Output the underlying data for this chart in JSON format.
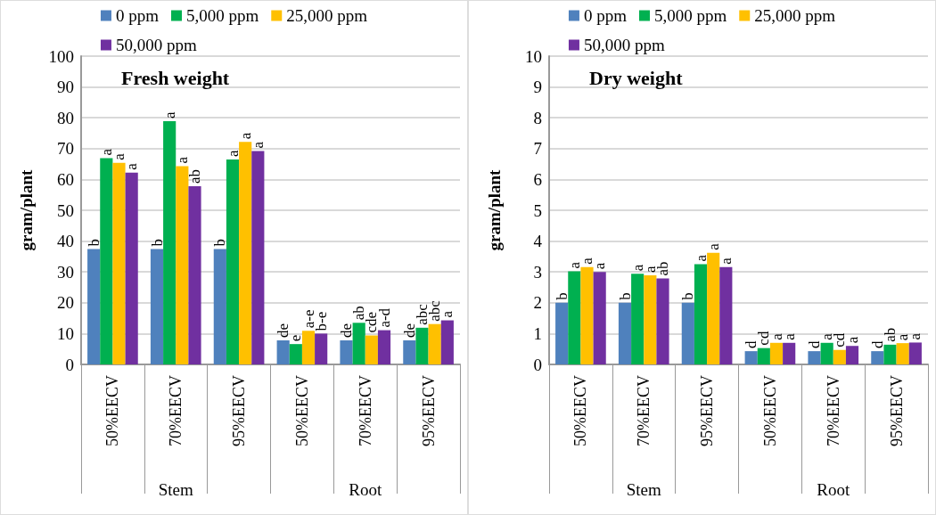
{
  "chart_data": [
    {
      "type": "bar",
      "title": "Fresh weight",
      "ylabel": "gram/plant",
      "categories": [
        "50%EECV",
        "70%EECV",
        "95%EECV",
        "50%EECV",
        "70%EECV",
        "95%EECV"
      ],
      "series": [
        {
          "name": "0 ppm",
          "color": "#4f81bd",
          "values": [
            37.4,
            37.4,
            37.4,
            7.8,
            7.8,
            7.8
          ],
          "value_labels": [
            "b",
            "b",
            "b",
            "de",
            "de",
            "de"
          ]
        },
        {
          "name": "5,000 ppm",
          "color": "#00b050",
          "values": [
            66.9,
            78.9,
            66.5,
            6.6,
            13.5,
            11.9
          ],
          "value_labels": [
            "a",
            "a",
            "a",
            "e",
            "ab",
            "abc"
          ]
        },
        {
          "name": "25,000 ppm",
          "color": "#ffc000",
          "values": [
            65.4,
            64.3,
            72.2,
            10.9,
            9.4,
            13.1
          ],
          "value_labels": [
            "a",
            "a",
            "a",
            "a-e",
            "cde",
            "abc"
          ]
        },
        {
          "name": "50,000 ppm",
          "color": "#7030a0",
          "values": [
            62.2,
            57.8,
            69.2,
            10.0,
            11.1,
            14.3
          ],
          "value_labels": [
            "a",
            "ab",
            "a",
            "b-e",
            "a-d",
            "a"
          ]
        }
      ],
      "ylim": [
        0,
        100
      ],
      "yticks": [
        0,
        10,
        20,
        30,
        40,
        50,
        60,
        70,
        80,
        90,
        100
      ],
      "grid": "y",
      "legend": "top",
      "annotations": [
        "Stem",
        "Root"
      ]
    },
    {
      "type": "bar",
      "title": "Dry weight",
      "ylabel": "gram/plant",
      "categories": [
        "50%EECV",
        "70%EECV",
        "95%EECV",
        "50%EECV",
        "70%EECV",
        "95%EECV"
      ],
      "series": [
        {
          "name": "0 ppm",
          "color": "#4f81bd",
          "values": [
            2.0,
            2.0,
            2.0,
            0.43,
            0.43,
            0.43
          ],
          "value_labels": [
            "b",
            "b",
            "b",
            "d",
            "d",
            "d"
          ]
        },
        {
          "name": "5,000 ppm",
          "color": "#00b050",
          "values": [
            3.02,
            2.94,
            3.25,
            0.53,
            0.7,
            0.64
          ],
          "value_labels": [
            "a",
            "a",
            "a",
            "cd",
            "a",
            "ab"
          ]
        },
        {
          "name": "25,000 ppm",
          "color": "#ffc000",
          "values": [
            3.16,
            2.89,
            3.62,
            0.7,
            0.47,
            0.69
          ],
          "value_labels": [
            "a",
            "a",
            "a",
            "a",
            "cd",
            "a"
          ]
        },
        {
          "name": "50,000 ppm",
          "color": "#7030a0",
          "values": [
            3.0,
            2.79,
            3.16,
            0.7,
            0.6,
            0.71
          ],
          "value_labels": [
            "a",
            "ab",
            "a",
            "a",
            "a",
            "a"
          ]
        }
      ],
      "ylim": [
        0,
        10
      ],
      "yticks": [
        0,
        1,
        2,
        3,
        4,
        5,
        6,
        7,
        8,
        9,
        10
      ],
      "grid": "y",
      "legend": "top",
      "annotations": [
        "Stem",
        "Root"
      ]
    }
  ]
}
